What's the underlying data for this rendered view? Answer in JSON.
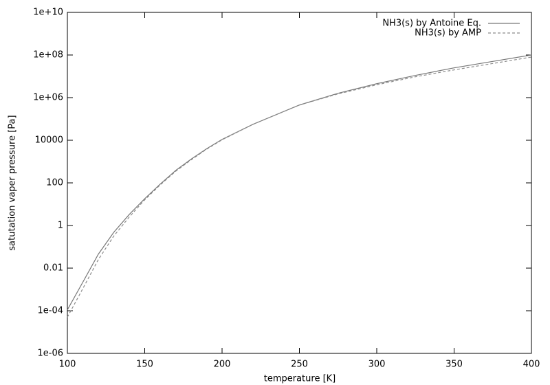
{
  "chart_data": {
    "type": "line",
    "x_label": "temperature [K]",
    "y_label": "satutation vaper pressure [Pa]",
    "x": [
      100,
      110,
      120,
      130,
      140,
      150,
      160,
      170,
      180,
      190,
      200,
      220,
      250,
      275,
      300,
      325,
      350,
      375,
      400
    ],
    "series": [
      {
        "name": "NH3(s) by Antoine Eq.",
        "color": "#777777",
        "dash": false,
        "values": [
          0.00011,
          0.0022,
          0.045,
          0.48,
          3.3,
          18,
          87,
          380,
          1300,
          4000,
          11000,
          56000,
          450000,
          1600000,
          4500000,
          11000000,
          25000000,
          50000000,
          100000000
        ]
      },
      {
        "name": "NH3(s) by AMP",
        "color": "#8a8a8a",
        "dash": true,
        "values": [
          5e-05,
          0.0011,
          0.025,
          0.32,
          2.5,
          16,
          80,
          350,
          1200,
          3800,
          10500,
          56000,
          450000,
          1500000,
          4000000,
          9500000,
          20000000,
          40000000,
          80000000
        ]
      }
    ],
    "xlim": [
      100,
      400
    ],
    "xticks": [
      100,
      150,
      200,
      250,
      300,
      350,
      400
    ],
    "ylim": [
      1e-06,
      10000000000
    ],
    "log_y": true,
    "yticks": [
      {
        "value": 1e-06,
        "label": "1e-06"
      },
      {
        "value": 0.0001,
        "label": "1e-04"
      },
      0.01,
      1,
      100,
      10000,
      {
        "value": 1000000,
        "label": "1e+06"
      },
      {
        "value": 100000000,
        "label": "1e+08"
      },
      {
        "value": 10000000000,
        "label": "1e+10"
      }
    ],
    "legend": "top-right",
    "grid": false
  }
}
